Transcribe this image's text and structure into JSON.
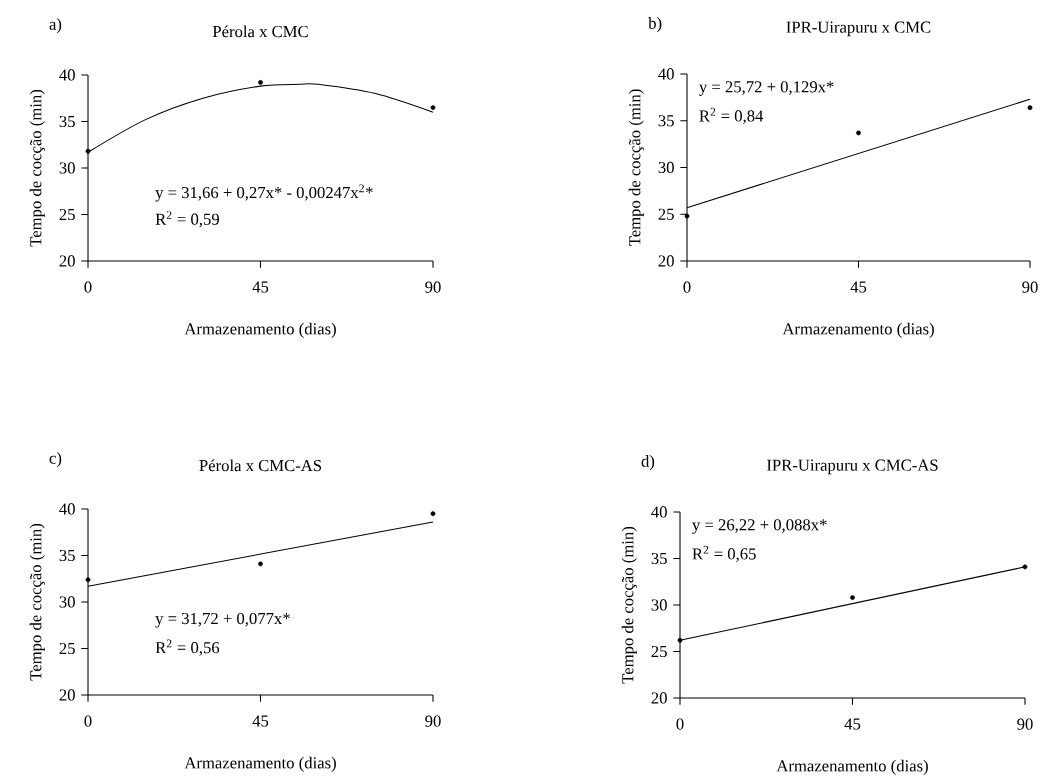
{
  "chart_data": [
    {
      "type": "scatter",
      "title": "Pérola x  CMC",
      "xlabel": "Armazenamento (dias)",
      "ylabel": "Tempo de cocção (min)",
      "annotations": [
        "a)",
        "y = 31,66 + 0,27x* - 0,00247x$^{2}$*",
        "R$^{2}$ = 0,59"
      ],
      "xlim": [
        0,
        90
      ],
      "ylim": [
        20,
        40
      ],
      "xticks": [
        0,
        45,
        90
      ],
      "yticks": [
        20,
        25,
        30,
        35,
        40
      ],
      "series": [
        {
          "color": "#000000",
          "marker": "circle",
          "x": [
            0,
            45,
            90
          ],
          "values": [
            31.8,
            39.2,
            36.5
          ]
        },
        {
          "type": "line",
          "color": "#000000",
          "marker": "none",
          "x": [
            0,
            15,
            30,
            45,
            55,
            60,
            75,
            90
          ],
          "values": [
            31.7,
            35.2,
            37.5,
            38.8,
            39.0,
            39.0,
            38.0,
            36.0
          ]
        }
      ]
    },
    {
      "type": "scatter",
      "title": "IPR-Uirapuru x  CMC",
      "xlabel": "Armazenamento (dias)",
      "ylabel": "Tempo de cocção (min)",
      "annotations": [
        "b)",
        "y = 25,72 + 0,129x*",
        "R$^{2}$ = 0,84"
      ],
      "xlim": [
        0,
        90
      ],
      "ylim": [
        20,
        40
      ],
      "xticks": [
        0,
        45,
        90
      ],
      "yticks": [
        20,
        25,
        30,
        35,
        40
      ],
      "series": [
        {
          "color": "#000000",
          "marker": "circle",
          "x": [
            0,
            45,
            90
          ],
          "values": [
            24.8,
            33.7,
            36.4
          ]
        },
        {
          "type": "line",
          "color": "#000000",
          "marker": "none",
          "x": [
            0,
            90
          ],
          "values": [
            25.7,
            37.3
          ]
        }
      ]
    },
    {
      "type": "scatter",
      "title": "Pérola x  CMC-AS",
      "xlabel": "Armazenamento (dias)",
      "ylabel": "Tempo de cocção (min)",
      "annotations": [
        "c)",
        "y = 31,72 + 0,077x*",
        "R$^{2}$ = 0,56"
      ],
      "xlim": [
        0,
        90
      ],
      "ylim": [
        20,
        40
      ],
      "xticks": [
        0,
        45,
        90
      ],
      "yticks": [
        20,
        25,
        30,
        35,
        40
      ],
      "series": [
        {
          "color": "#000000",
          "marker": "circle",
          "x": [
            0,
            45,
            90
          ],
          "values": [
            32.4,
            34.1,
            39.5
          ]
        },
        {
          "type": "line",
          "color": "#000000",
          "marker": "none",
          "x": [
            0,
            90
          ],
          "values": [
            31.7,
            38.6
          ]
        }
      ]
    },
    {
      "type": "scatter",
      "title": "IPR-Uirapuru x CMC-AS",
      "xlabel": "Armazenamento (dias)",
      "ylabel": "Tempo de cocção (min)",
      "annotations": [
        "d)",
        "y = 26,22 + 0,088x*",
        "R$^{2}$ = 0,65"
      ],
      "xlim": [
        0,
        90
      ],
      "ylim": [
        20,
        40
      ],
      "xticks": [
        0,
        45,
        90
      ],
      "yticks": [
        20,
        25,
        30,
        35,
        40
      ],
      "series": [
        {
          "color": "#000000",
          "marker": "circle",
          "x": [
            0,
            45,
            90
          ],
          "values": [
            26.2,
            30.8,
            34.1
          ]
        },
        {
          "type": "line",
          "color": "#000000",
          "marker": "none",
          "x": [
            0,
            90
          ],
          "values": [
            26.2,
            34.1
          ]
        }
      ]
    }
  ]
}
